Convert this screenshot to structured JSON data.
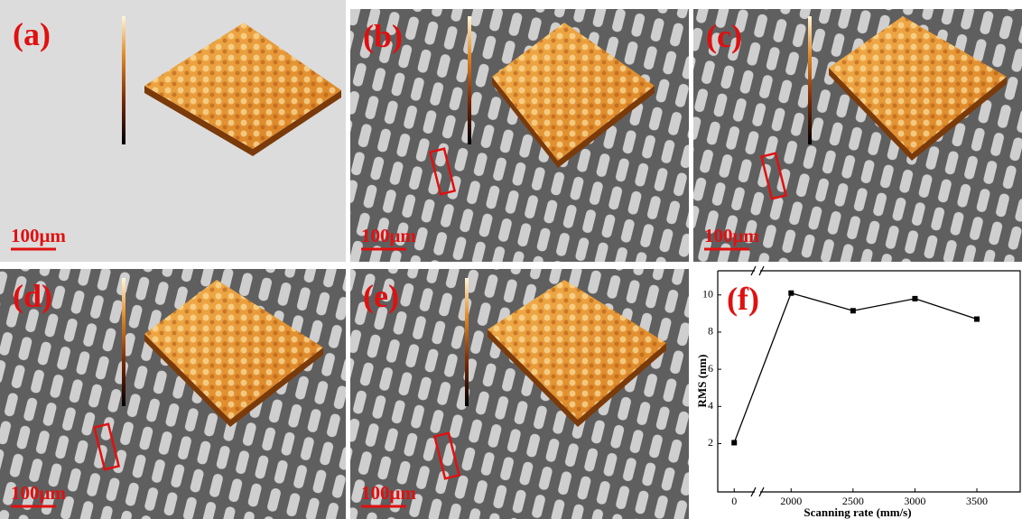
{
  "panels": [
    {
      "label": "(a)",
      "scale_bar": "100μm"
    },
    {
      "label": "(b)",
      "scale_bar": "100μm"
    },
    {
      "label": "(c)",
      "scale_bar": "100μm"
    },
    {
      "label": "(d)",
      "scale_bar": "100μm"
    },
    {
      "label": "(e)",
      "scale_bar": "100μm"
    }
  ],
  "chart_data": {
    "type": "line",
    "label": "(f)",
    "x": [
      0,
      2000,
      2500,
      3000,
      3500
    ],
    "series": [
      {
        "color": "#000000",
        "values": [
          2.05,
          10.1,
          9.15,
          9.8,
          8.7
        ]
      }
    ],
    "xlim": [
      -400,
      3850
    ],
    "axis_break": [
      500,
      1750
    ],
    "xticks": [
      0,
      2000,
      2500,
      3000,
      3500
    ],
    "ylim": [
      -0.6,
      11.3
    ],
    "yticks": [
      2,
      4,
      6,
      8,
      10
    ],
    "xlabel": "Scanning rate (mm/s)",
    "ylabel": "RMS (nm)"
  }
}
